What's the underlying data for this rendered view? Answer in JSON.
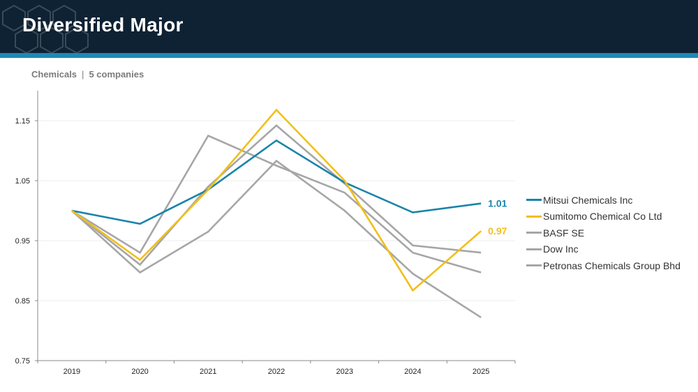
{
  "header": {
    "title": "Diversified Major"
  },
  "subtitle": {
    "sector": "Chemicals",
    "separator": "|",
    "count": "5 companies"
  },
  "colors": {
    "header_bg": "#0e2233",
    "accent_bar": "#1a8ab8",
    "mitsui": "#1a84aa",
    "sumitomo": "#f2bf1a",
    "peer": "#a6a6a6"
  },
  "chart_data": {
    "type": "line",
    "x": [
      "2019",
      "2020",
      "2021",
      "2022",
      "2023",
      "2024",
      "2025"
    ],
    "ylim": [
      0.75,
      1.15
    ],
    "yticks": [
      "1.15",
      "1.05",
      "0.95",
      "0.85",
      "0.75"
    ],
    "ytick_values": [
      1.15,
      1.05,
      0.95,
      0.85,
      0.75
    ],
    "grid": true,
    "legend_position": "right",
    "series": [
      {
        "name": "BASF SE",
        "color": "#a6a6a6",
        "values": [
          1.0,
          0.93,
          1.125,
          1.075,
          1.03,
          0.93,
          0.897
        ]
      },
      {
        "name": "Dow Inc",
        "color": "#a6a6a6",
        "values": [
          1.0,
          0.91,
          1.04,
          1.142,
          1.045,
          0.942,
          0.93
        ]
      },
      {
        "name": "Petronas Chemicals Group Bhd",
        "color": "#a6a6a6",
        "values": [
          1.0,
          0.897,
          0.965,
          1.083,
          1.0,
          0.895,
          0.822
        ]
      },
      {
        "name": "Mitsui Chemicals Inc",
        "color": "#1a84aa",
        "values": [
          1.0,
          0.978,
          1.035,
          1.117,
          1.047,
          0.997,
          1.012
        ],
        "end_label": "1.01"
      },
      {
        "name": "Sumitomo Chemical Co Ltd",
        "color": "#f2bf1a",
        "values": [
          1.0,
          0.918,
          1.035,
          1.168,
          1.05,
          0.867,
          0.966
        ],
        "end_label": "0.97"
      }
    ],
    "legend_order": [
      "Mitsui Chemicals Inc",
      "Sumitomo Chemical Co Ltd",
      "BASF SE",
      "Dow Inc",
      "Petronas Chemicals Group Bhd"
    ]
  }
}
